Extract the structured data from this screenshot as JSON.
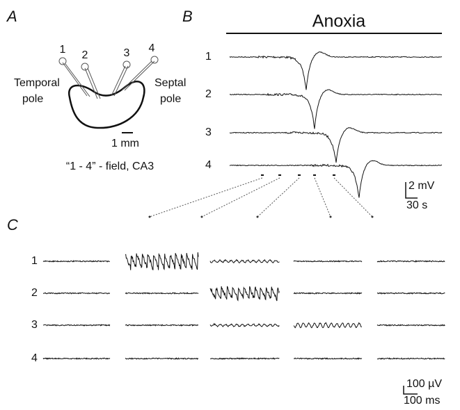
{
  "panel_a": {
    "label": "A",
    "electrodes": [
      "1",
      "2",
      "3",
      "4"
    ],
    "temporal_pole": [
      "Temporal",
      "pole"
    ],
    "septal_pole": [
      "Septal",
      "pole"
    ],
    "scale": "1 mm",
    "caption": "“1 - 4” -  field, CA3"
  },
  "panel_b": {
    "label": "B",
    "title": "Anoxia",
    "traces": [
      "1",
      "2",
      "3",
      "4"
    ],
    "scale_v": "2 mV",
    "scale_t": "30 s"
  },
  "panel_c": {
    "label": "C",
    "rows": [
      "1",
      "2",
      "3",
      "4"
    ],
    "scale_v": "100 µV",
    "scale_t": "100 ms"
  }
}
